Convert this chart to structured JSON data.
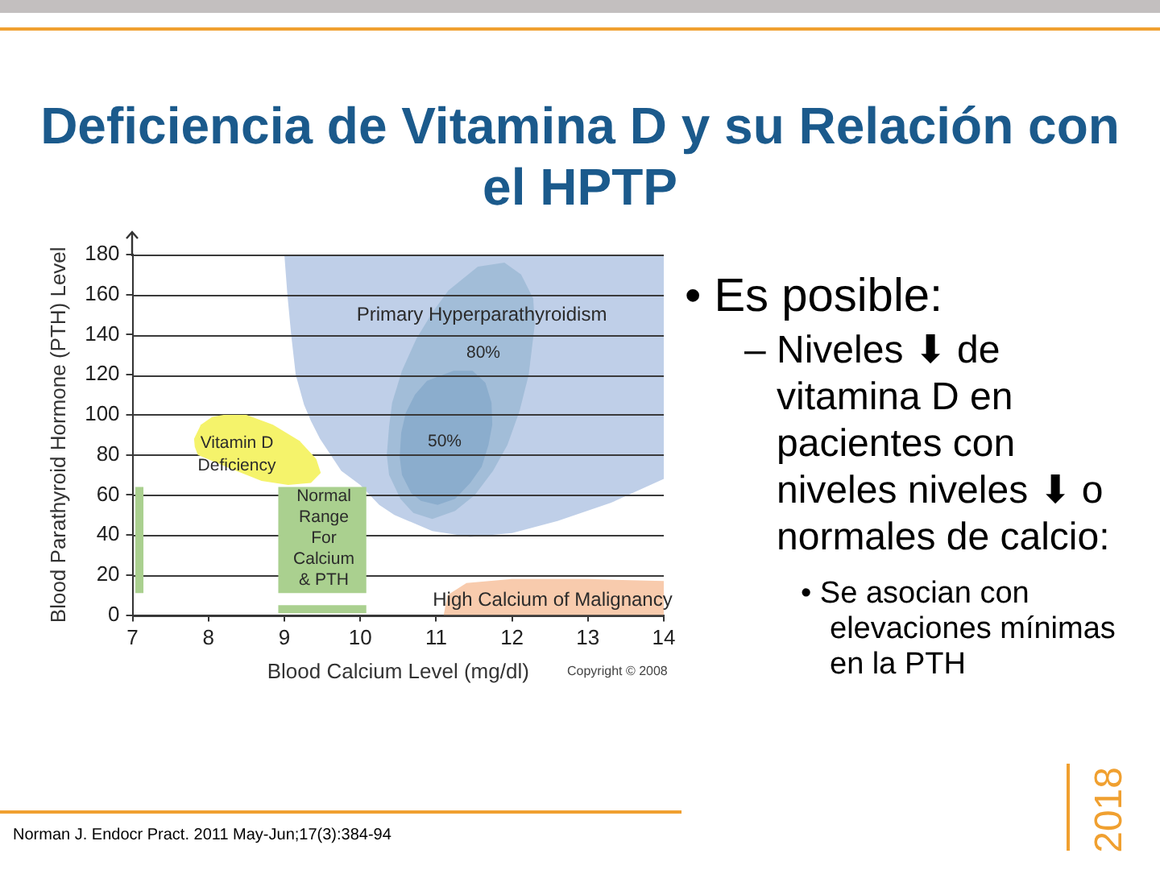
{
  "chart_data": {
    "type": "area",
    "title": "Deficiencia de Vitamina D y su Relación con el HPTP",
    "xlabel": "Blood Calcium Level (mg/dl)",
    "ylabel": "Blood Parathyroid Hormone (PTH) Level",
    "xlim": [
      7,
      14
    ],
    "xticks": [
      7,
      8,
      9,
      10,
      11,
      12,
      13,
      14
    ],
    "ylim": [
      0,
      180
    ],
    "yticks": [
      0,
      20,
      40,
      60,
      80,
      100,
      120,
      140,
      160,
      180
    ],
    "grid": "y",
    "series": [
      {
        "color": "#bfcfe8",
        "x": [
          9.0,
          9.04,
          9.09,
          9.15,
          9.26,
          9.35,
          9.47,
          9.75,
          10.0,
          10.25,
          10.45,
          10.95,
          11.45,
          12.0,
          12.6,
          13.3,
          14,
          14
        ],
        "values": [
          180,
          160,
          140,
          120,
          105,
          97,
          88,
          72,
          65,
          55,
          50,
          42,
          39,
          41,
          47,
          56,
          68,
          180
        ]
      },
      {
        "color": "#a2bdd8",
        "x": [
          11.9,
          12.12,
          12.28,
          12.3,
          12.22,
          12.1,
          11.94,
          11.75,
          11.51,
          11.25,
          10.95,
          10.7,
          10.53,
          10.38,
          10.35,
          10.38,
          10.42,
          10.55,
          10.74,
          10.95,
          11.16,
          11.55
        ],
        "values": [
          176,
          170,
          158,
          145,
          120,
          102,
          85,
          72,
          60,
          52,
          48,
          51,
          58,
          70,
          80,
          94,
          106,
          122,
          138,
          151,
          162,
          174
        ]
      },
      {
        "color": "#8badcd",
        "x": [
          11.48,
          11.65,
          11.73,
          11.74,
          11.69,
          11.6,
          11.45,
          11.25,
          11.02,
          10.8,
          10.67,
          10.55,
          10.52,
          10.54,
          10.6,
          10.72,
          10.88,
          11.23
        ],
        "values": [
          122,
          116,
          106,
          95,
          85,
          74,
          66,
          58,
          55,
          57,
          61,
          70,
          79,
          91,
          101,
          110,
          117,
          122
        ]
      },
      {
        "color": "#f5f36b",
        "x": [
          7.81,
          7.9,
          8.05,
          8.2,
          8.5,
          8.85,
          9.2,
          9.42,
          9.48,
          9.35,
          9.05,
          8.7,
          8.3,
          7.86,
          7.82
        ],
        "values": [
          88,
          95,
          99,
          100,
          100,
          95,
          87,
          78,
          71,
          66,
          65,
          67,
          73,
          80,
          84
        ]
      },
      {
        "color": "#aad08f",
        "x": [
          8.92,
          8.92,
          10.08,
          10.08
        ],
        "values": [
          11,
          64,
          64,
          11
        ]
      },
      {
        "color": "#f8cbad",
        "x": [
          11.1,
          11.15,
          11.4,
          12,
          13,
          14,
          14
        ],
        "values": [
          0,
          10,
          16,
          18,
          18,
          17,
          0
        ]
      },
      {
        "type": "line",
        "color": "#aad08f",
        "x": [
          7.09,
          7.09
        ],
        "values": [
          11,
          64
        ]
      },
      {
        "type": "line",
        "color": "#aad08f",
        "x": [
          8.92,
          10.08
        ],
        "values": [
          3,
          3
        ]
      }
    ],
    "annotations": [
      "Primary Hyperparathyroidism",
      "80%",
      "50%",
      "Vitamin D\nDeficiency",
      "Normal\nRange\nFor\nCalcium\n& PTH",
      "High Calcium of Malignancy",
      "Copyright © 2008",
      "• Es posible:",
      "– Niveles ⬇ de vitamina D en pacientes con niveles niveles ⬇ o normales de calcio:",
      "• Se asocian con elevaciones mínimas en la PTH",
      "Norman J. Endocr Pract. 2011 May-Jun;17(3):384-94",
      "2018"
    ]
  }
}
